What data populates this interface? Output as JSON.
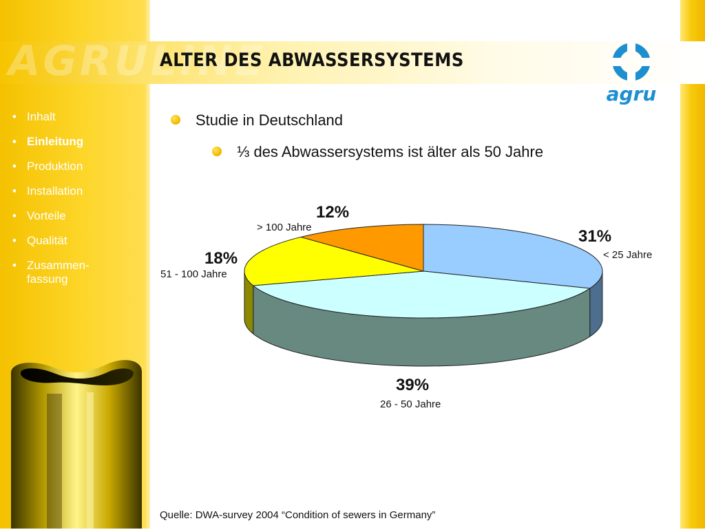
{
  "header": {
    "watermark": "AGRULINE",
    "title": "ALTER DES ABWASSERSYSTEMS"
  },
  "logo": {
    "text": "agru",
    "icon": "agru-logo-icon"
  },
  "nav": {
    "items": [
      {
        "label": "Inhalt",
        "active": false
      },
      {
        "label": "Einleitung",
        "active": true
      },
      {
        "label": "Produktion",
        "active": false
      },
      {
        "label": "Installation",
        "active": false
      },
      {
        "label": "Vorteile",
        "active": false
      },
      {
        "label": "Qualität",
        "active": false
      },
      {
        "label": "Zusammen-",
        "label2": "fassung",
        "active": false
      }
    ]
  },
  "content": {
    "bullet1": "Studie in Deutschland",
    "bullet2": "⅓ des Abwassersystems ist älter als 50 Jahre"
  },
  "chart_data": {
    "type": "pie",
    "style": "3d",
    "slices": [
      {
        "category": "< 25 Jahre",
        "value": 31,
        "label": "31%",
        "color": "#99ccff",
        "side": "#4d6e8f"
      },
      {
        "category": "26 - 50 Jahre",
        "value": 39,
        "label": "39%",
        "color": "#ccffff",
        "side": "#678980"
      },
      {
        "category": "51 - 100 Jahre",
        "value": 18,
        "label": "18%",
        "color": "#ffff00",
        "side": "#8c8a00"
      },
      {
        "category": "> 100 Jahre",
        "value": 12,
        "label": "12%",
        "color": "#ff9900",
        "side": "#8c5400"
      }
    ]
  },
  "footer": {
    "source": "Quelle: DWA-survey 2004 “Condition of sewers in Germany”"
  },
  "colors": {
    "accent_yellow": "#fdd629",
    "bullet_yellow": "#f5c000",
    "logo_blue": "#1d8fd1"
  }
}
